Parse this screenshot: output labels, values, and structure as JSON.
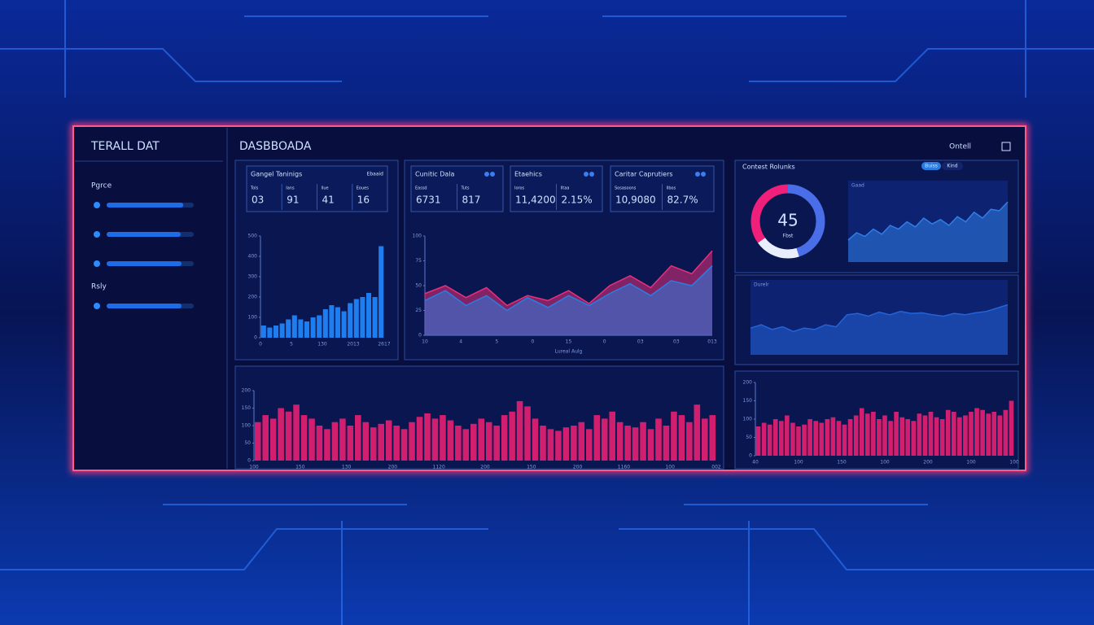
{
  "sidebar": {
    "title": "TERALL DAT",
    "groups": [
      {
        "label": "Pgrce",
        "bars": [
          88,
          85,
          86
        ]
      },
      {
        "label": "Rsly",
        "bars": [
          86
        ]
      }
    ]
  },
  "header": {
    "title": "DASBBOADA",
    "action": "Ontell"
  },
  "cards": [
    {
      "title": "Gangel Taninigs",
      "badge": "Ebaaid",
      "labels": [
        "Tols",
        "Ians",
        "Ilue",
        "Eoues"
      ],
      "cells": [
        "03",
        "91",
        "41",
        "16"
      ]
    },
    {
      "title": "Cunitic Dala",
      "labels": [
        "Eassd",
        "Tuts"
      ],
      "cells": [
        "6731",
        "817"
      ]
    },
    {
      "title": "Etaehics",
      "labels": [
        "Ioros",
        "Iltaa"
      ],
      "cells": [
        "11,4200",
        "2.15%"
      ]
    },
    {
      "title": "Caritar Caprutiers",
      "labels": [
        "Sosasoons",
        "Ilbos"
      ],
      "cells": [
        "10,9080",
        "82.7%"
      ]
    }
  ],
  "right_panel": {
    "title": "Contest Rolunks",
    "toggles": [
      "Buiss",
      "Kind"
    ]
  },
  "charts": {
    "activity": {
      "ylim": [
        0,
        500
      ],
      "yticks": [
        0,
        100,
        200,
        300,
        400,
        500
      ],
      "xlabels": [
        "0",
        "5",
        "130",
        "2013",
        "2617"
      ],
      "color": "#1e7ef0",
      "values": [
        60,
        50,
        60,
        70,
        90,
        110,
        90,
        80,
        100,
        110,
        140,
        160,
        150,
        130,
        170,
        190,
        200,
        220,
        200,
        450
      ]
    },
    "trend": {
      "ylim": [
        0,
        100
      ],
      "yticks": [
        0,
        25,
        50,
        75,
        100
      ],
      "xlabels": [
        "10",
        "4",
        "5",
        "0",
        "15",
        "0",
        "03",
        "03",
        "013"
      ],
      "axis_label": "Lureal Aulg",
      "series": [
        {
          "color": "#e8307a",
          "values": [
            42,
            50,
            38,
            48,
            30,
            40,
            35,
            45,
            32,
            50,
            60,
            48,
            70,
            62,
            85
          ]
        },
        {
          "color": "#2a7de0",
          "values": [
            35,
            45,
            30,
            40,
            25,
            38,
            28,
            40,
            30,
            42,
            52,
            40,
            55,
            50,
            70
          ]
        }
      ]
    },
    "gauge": {
      "segments": [
        45,
        20,
        35
      ],
      "colors": [
        "#4a6ee8",
        "#e8eefc",
        "#f0207a"
      ],
      "sublabel": "Fbst"
    },
    "spark": {
      "label": "Gaad",
      "ylim": [
        0,
        100
      ],
      "color": "#2f7ee8",
      "values": [
        30,
        40,
        35,
        45,
        38,
        50,
        45,
        55,
        48,
        60,
        52,
        58,
        50,
        62,
        55,
        68,
        60,
        72,
        70,
        82
      ]
    },
    "flow": {
      "label": "Durelr",
      "ylim": [
        0,
        100
      ],
      "color": "#2463d8",
      "values": [
        40,
        45,
        38,
        42,
        35,
        40,
        38,
        45,
        42,
        60,
        62,
        58,
        64,
        60,
        65,
        62,
        63,
        60,
        58,
        62,
        60,
        63,
        65,
        70,
        75
      ]
    },
    "volume": {
      "ylim": [
        0,
        200
      ],
      "yticks": [
        0,
        50,
        100,
        150,
        200
      ],
      "xlabels": [
        "100",
        "150",
        "130",
        "200",
        "1120",
        "200",
        "150",
        "200",
        "1160",
        "100",
        "002"
      ],
      "color": "#d21e6e",
      "values": [
        110,
        130,
        120,
        150,
        140,
        160,
        130,
        120,
        100,
        90,
        110,
        120,
        100,
        130,
        110,
        95,
        105,
        115,
        100,
        90,
        110,
        125,
        135,
        120,
        130,
        115,
        100,
        90,
        105,
        120,
        110,
        100,
        130,
        140,
        170,
        155,
        120,
        100,
        90,
        85,
        95,
        100,
        110,
        90,
        130,
        120,
        140,
        110,
        100,
        95,
        110,
        90,
        120,
        100,
        140,
        130,
        110,
        160,
        120,
        130
      ]
    },
    "volume2": {
      "ylim": [
        0,
        200
      ],
      "yticks": [
        0,
        50,
        100,
        150,
        200
      ],
      "xlabels": [
        "40",
        "100",
        "150",
        "100",
        "200",
        "100",
        "100"
      ],
      "color": "#d21e6e",
      "values": [
        80,
        90,
        85,
        100,
        95,
        110,
        90,
        80,
        85,
        100,
        95,
        90,
        100,
        105,
        95,
        85,
        100,
        110,
        130,
        115,
        120,
        100,
        110,
        95,
        120,
        105,
        100,
        95,
        115,
        110,
        120,
        105,
        100,
        125,
        120,
        105,
        110,
        120,
        130,
        125,
        115,
        120,
        110,
        125,
        150
      ]
    }
  }
}
